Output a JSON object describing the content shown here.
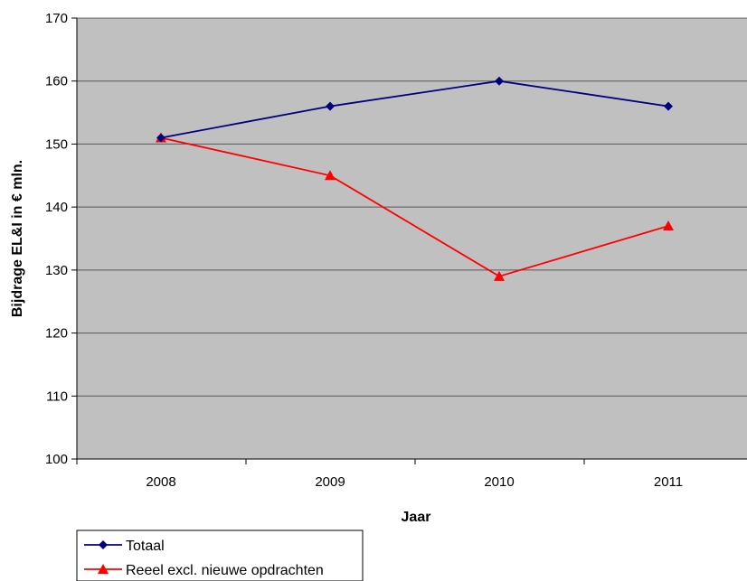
{
  "chart_data": {
    "type": "line",
    "title": "",
    "xlabel": "Jaar",
    "ylabel": "Bijdrage EL&I in € mln.",
    "categories": [
      "2008",
      "2009",
      "2010",
      "2011"
    ],
    "ylim": [
      100,
      170
    ],
    "yticks": [
      100,
      110,
      120,
      130,
      140,
      150,
      160,
      170
    ],
    "grid": true,
    "legend_position": "bottom-left",
    "plot_background": "#c0c0c0",
    "series": [
      {
        "name": "Totaal",
        "values": [
          151,
          156,
          160,
          156
        ],
        "color": "#000080",
        "marker": "diamond"
      },
      {
        "name": "Reeel excl. nieuwe opdrachten",
        "values": [
          151,
          145,
          129,
          137
        ],
        "color": "#ff0000",
        "marker": "triangle"
      }
    ]
  }
}
